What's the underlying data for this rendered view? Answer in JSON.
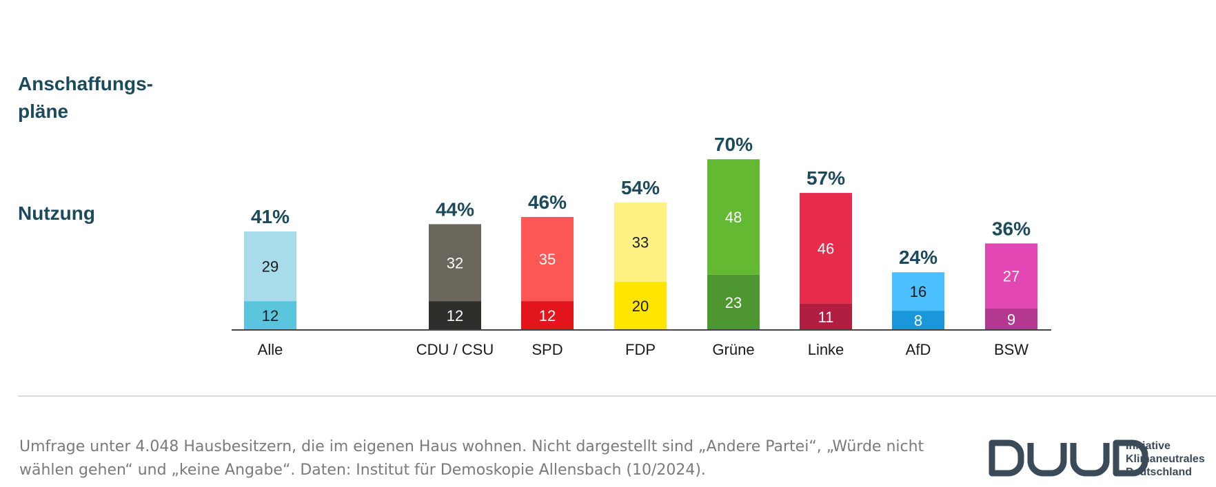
{
  "legend": {
    "top": "Anschaffungs-pläne",
    "bottom": "Nutzung"
  },
  "chart_data": {
    "type": "bar",
    "stacked": true,
    "categories": [
      "Alle",
      "CDU / CSU",
      "SPD",
      "FDP",
      "Grüne",
      "Linke",
      "AfD",
      "BSW"
    ],
    "series": [
      {
        "name": "Nutzung",
        "values": [
          12,
          12,
          12,
          20,
          23,
          11,
          8,
          9
        ]
      },
      {
        "name": "Anschaffungs-pläne",
        "values": [
          29,
          32,
          35,
          33,
          48,
          46,
          16,
          27
        ]
      }
    ],
    "totals": [
      "41%",
      "44%",
      "46%",
      "54%",
      "70%",
      "57%",
      "24%",
      "36%"
    ],
    "ylim": [
      0,
      70
    ],
    "colors": {
      "bottom": [
        "#5bc5de",
        "#2e2e2a",
        "#e1151b",
        "#ffe600",
        "#4e962f",
        "#b01f42",
        "#1a97db",
        "#b4388f"
      ],
      "top": [
        "#a9dcea",
        "#6a665c",
        "#fd5755",
        "#fff282",
        "#63b931",
        "#e72b4c",
        "#4cbfff",
        "#e247b4"
      ]
    },
    "label_colors": {
      "bottom": [
        "#1a1a1a",
        "#ffffff",
        "#ffffff",
        "#1a1a1a",
        "#ffffff",
        "#ffffff",
        "#ffffff",
        "#ffffff"
      ],
      "top": [
        "#1a1a1a",
        "#ffffff",
        "#ffffff",
        "#1a1a1a",
        "#ffffff",
        "#ffffff",
        "#1a1a1a",
        "#ffffff"
      ]
    },
    "axis_line_color": "#444444",
    "total_color": "#1a4a5c",
    "grid": false
  },
  "footer": {
    "text": "Umfrage unter 4.048 Hausbesitzern, die im eigenen Haus wohnen. Nicht dargestellt sind „Andere Partei“, „Würde nicht wählen gehen“ und „keine Angabe“. Daten: Institut für Demoskopie Allensbach (10/2024)."
  },
  "logo": {
    "line1": "Initiative",
    "line2": "Klimaneutrales",
    "line3": "Deutschland",
    "color": "#3a4a58"
  }
}
